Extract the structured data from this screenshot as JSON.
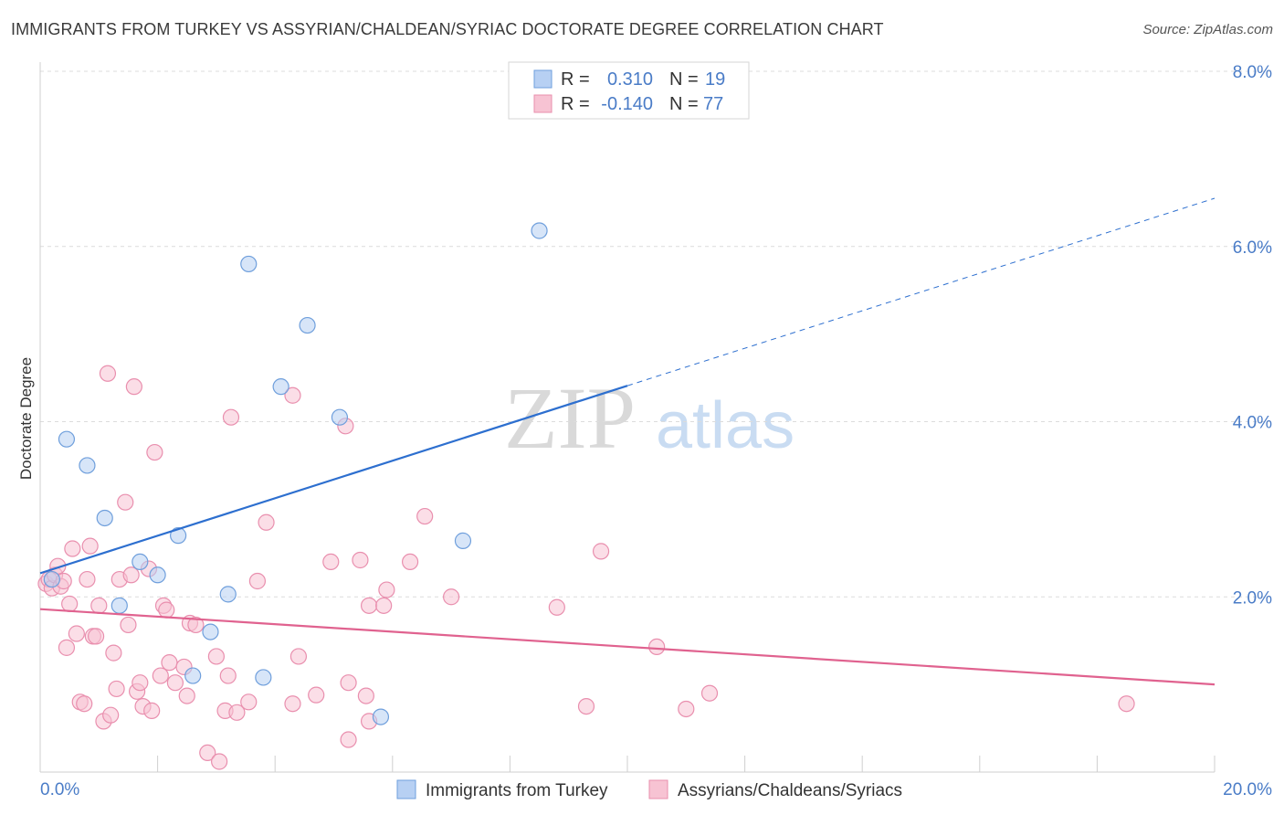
{
  "title": "IMMIGRANTS FROM TURKEY VS ASSYRIAN/CHALDEAN/SYRIAC DOCTORATE DEGREE CORRELATION CHART",
  "source": "Source: ZipAtlas.com",
  "watermark": {
    "zip": "ZIP",
    "atlas": "atlas"
  },
  "colors": {
    "blue": "#2d6fcf",
    "blue_fill": "#b7d0f3",
    "blue_stroke": "#6f9fdc",
    "pink": "#e0628f",
    "pink_fill": "#f7c3d3",
    "pink_stroke": "#e98fae",
    "tick_text": "#4a7cc7",
    "grid": "#dcdcdc"
  },
  "legend": {
    "rows": [
      {
        "r_label": "R =",
        "r_value": "0.310",
        "n_label": "N =",
        "n_value": "19"
      },
      {
        "r_label": "R =",
        "r_value": "-0.140",
        "n_label": "N =",
        "n_value": "77"
      }
    ]
  },
  "bottom_legend": {
    "series1": "Immigrants from Turkey",
    "series2": "Assyrians/Chaldeans/Syriacs"
  },
  "chart_data": {
    "type": "scatter",
    "title": "IMMIGRANTS FROM TURKEY VS ASSYRIAN/CHALDEAN/SYRIAC DOCTORATE DEGREE CORRELATION CHART",
    "xlabel": "",
    "ylabel": "Doctorate Degree",
    "xlim": [
      0,
      20
    ],
    "ylim": [
      0,
      8
    ],
    "x_tick_labels": [
      "0.0%",
      "20.0%"
    ],
    "y_tick_labels": [
      "2.0%",
      "4.0%",
      "6.0%",
      "8.0%"
    ],
    "y_ticks": [
      2,
      4,
      6,
      8
    ],
    "grid": true,
    "legend_position": "top-center",
    "series": [
      {
        "name": "Immigrants from Turkey",
        "color": "blue",
        "r": 0.31,
        "n": 19,
        "trend": {
          "x0": 0,
          "y0": 2.27,
          "x1": 10,
          "y1": 4.41,
          "extend_to": 20
        },
        "points": [
          [
            0.2,
            2.2
          ],
          [
            0.45,
            3.8
          ],
          [
            0.8,
            3.5
          ],
          [
            1.1,
            2.9
          ],
          [
            1.35,
            1.9
          ],
          [
            1.7,
            2.4
          ],
          [
            2.0,
            2.25
          ],
          [
            2.35,
            2.7
          ],
          [
            2.6,
            1.1
          ],
          [
            2.9,
            1.6
          ],
          [
            3.2,
            2.03
          ],
          [
            3.55,
            5.8
          ],
          [
            3.8,
            1.08
          ],
          [
            4.1,
            4.4
          ],
          [
            4.55,
            5.1
          ],
          [
            5.1,
            4.05
          ],
          [
            5.8,
            0.63
          ],
          [
            7.2,
            2.64
          ],
          [
            8.5,
            6.18
          ]
        ]
      },
      {
        "name": "Assyrians/Chaldeans/Syriacs",
        "color": "pink",
        "r": -0.14,
        "n": 77,
        "trend": {
          "x0": 0,
          "y0": 1.86,
          "x1": 20,
          "y1": 1.0
        },
        "points": [
          [
            0.1,
            2.15
          ],
          [
            0.15,
            2.2
          ],
          [
            0.2,
            2.1
          ],
          [
            0.25,
            2.25
          ],
          [
            0.3,
            2.35
          ],
          [
            0.35,
            2.12
          ],
          [
            0.4,
            2.18
          ],
          [
            0.45,
            1.42
          ],
          [
            0.5,
            1.92
          ],
          [
            0.55,
            2.55
          ],
          [
            0.62,
            1.58
          ],
          [
            0.68,
            0.8
          ],
          [
            0.75,
            0.78
          ],
          [
            0.8,
            2.2
          ],
          [
            0.85,
            2.58
          ],
          [
            0.9,
            1.55
          ],
          [
            0.95,
            1.55
          ],
          [
            1.0,
            1.9
          ],
          [
            1.08,
            0.58
          ],
          [
            1.15,
            4.55
          ],
          [
            1.2,
            0.65
          ],
          [
            1.25,
            1.36
          ],
          [
            1.3,
            0.95
          ],
          [
            1.35,
            2.2
          ],
          [
            1.45,
            3.08
          ],
          [
            1.5,
            1.68
          ],
          [
            1.55,
            2.25
          ],
          [
            1.6,
            4.4
          ],
          [
            1.65,
            0.92
          ],
          [
            1.7,
            1.02
          ],
          [
            1.75,
            0.75
          ],
          [
            1.85,
            2.32
          ],
          [
            1.9,
            0.7
          ],
          [
            1.95,
            3.65
          ],
          [
            2.05,
            1.1
          ],
          [
            2.1,
            1.9
          ],
          [
            2.15,
            1.85
          ],
          [
            2.2,
            1.25
          ],
          [
            2.3,
            1.02
          ],
          [
            2.45,
            1.2
          ],
          [
            2.5,
            0.87
          ],
          [
            2.55,
            1.7
          ],
          [
            2.65,
            1.68
          ],
          [
            2.85,
            0.22
          ],
          [
            3.0,
            1.32
          ],
          [
            3.05,
            0.12
          ],
          [
            3.15,
            0.7
          ],
          [
            3.2,
            1.1
          ],
          [
            3.25,
            4.05
          ],
          [
            3.35,
            0.68
          ],
          [
            3.55,
            0.8
          ],
          [
            3.7,
            2.18
          ],
          [
            3.85,
            2.85
          ],
          [
            4.3,
            4.3
          ],
          [
            4.3,
            0.78
          ],
          [
            4.4,
            1.32
          ],
          [
            4.7,
            0.88
          ],
          [
            4.95,
            2.4
          ],
          [
            5.2,
            3.95
          ],
          [
            5.25,
            1.02
          ],
          [
            5.25,
            0.37
          ],
          [
            5.45,
            2.42
          ],
          [
            5.55,
            0.87
          ],
          [
            5.6,
            0.58
          ],
          [
            5.6,
            1.9
          ],
          [
            5.85,
            1.9
          ],
          [
            5.9,
            2.08
          ],
          [
            6.3,
            2.4
          ],
          [
            6.55,
            2.92
          ],
          [
            7.0,
            2.0
          ],
          [
            8.8,
            1.88
          ],
          [
            9.3,
            0.75
          ],
          [
            9.55,
            2.52
          ],
          [
            10.5,
            1.43
          ],
          [
            11.0,
            0.72
          ],
          [
            11.4,
            0.9
          ],
          [
            18.5,
            0.78
          ]
        ]
      }
    ]
  }
}
